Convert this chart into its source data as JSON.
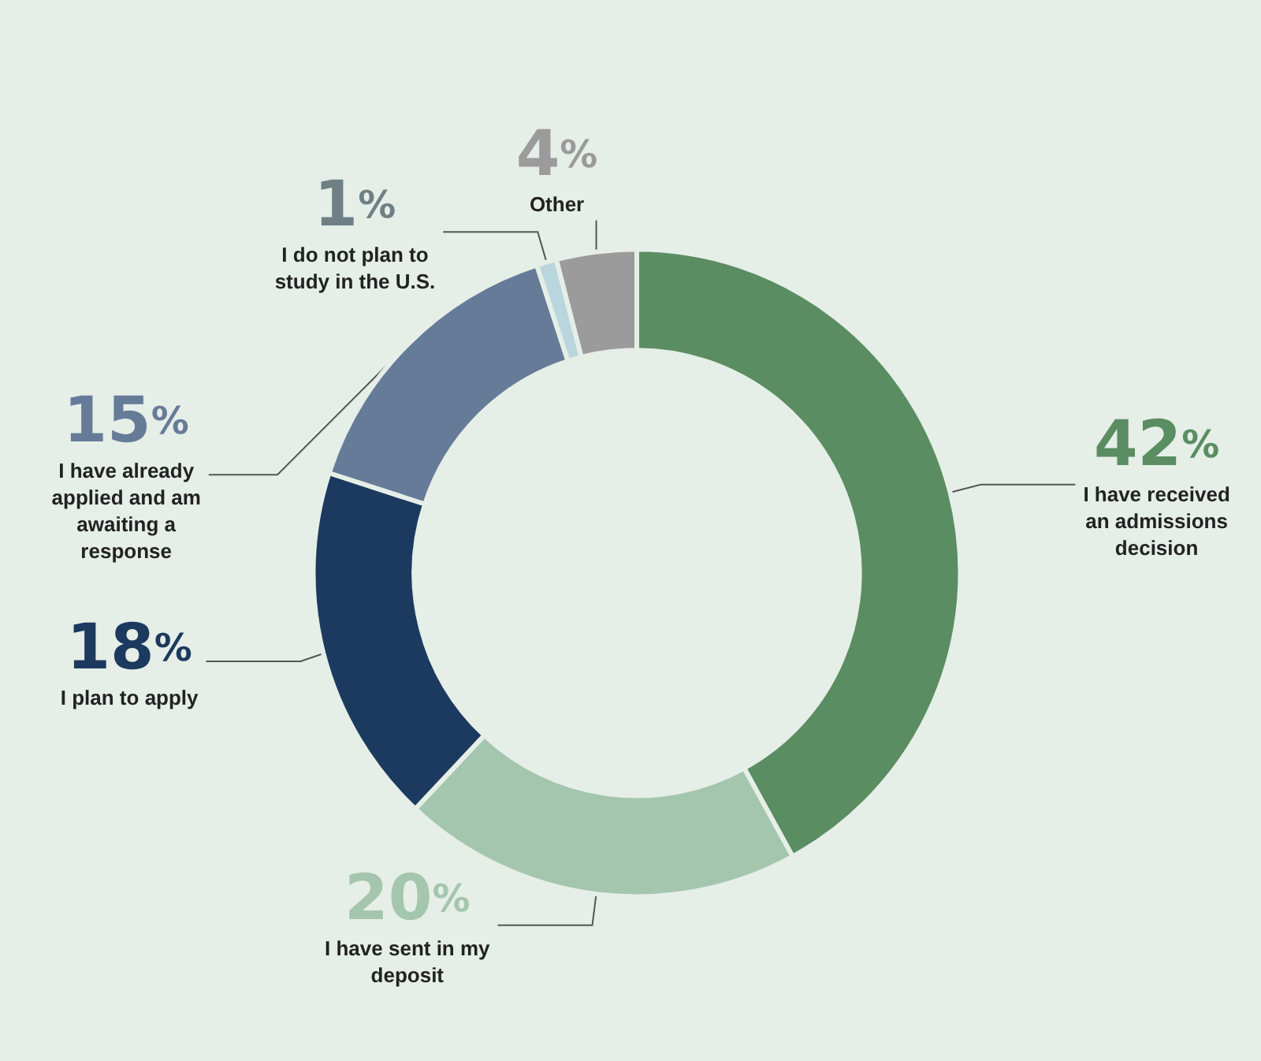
{
  "chart_data": {
    "type": "donut",
    "categories": [
      "I have received an admissions decision",
      "I have sent in my deposit",
      "I plan to apply",
      "I have already applied and am awaiting a response",
      "I do not plan to study in the U.S.",
      "Other"
    ],
    "values": [
      42,
      20,
      18,
      15,
      1,
      4
    ],
    "value_labels": [
      "42%",
      "20%",
      "18%",
      "15%",
      "1%",
      "4%"
    ],
    "colors": [
      "#5a8d62",
      "#a4c5ae",
      "#1c3a5f",
      "#667b98",
      "#b9d6de",
      "#9b9b9b"
    ],
    "legend": false
  }
}
